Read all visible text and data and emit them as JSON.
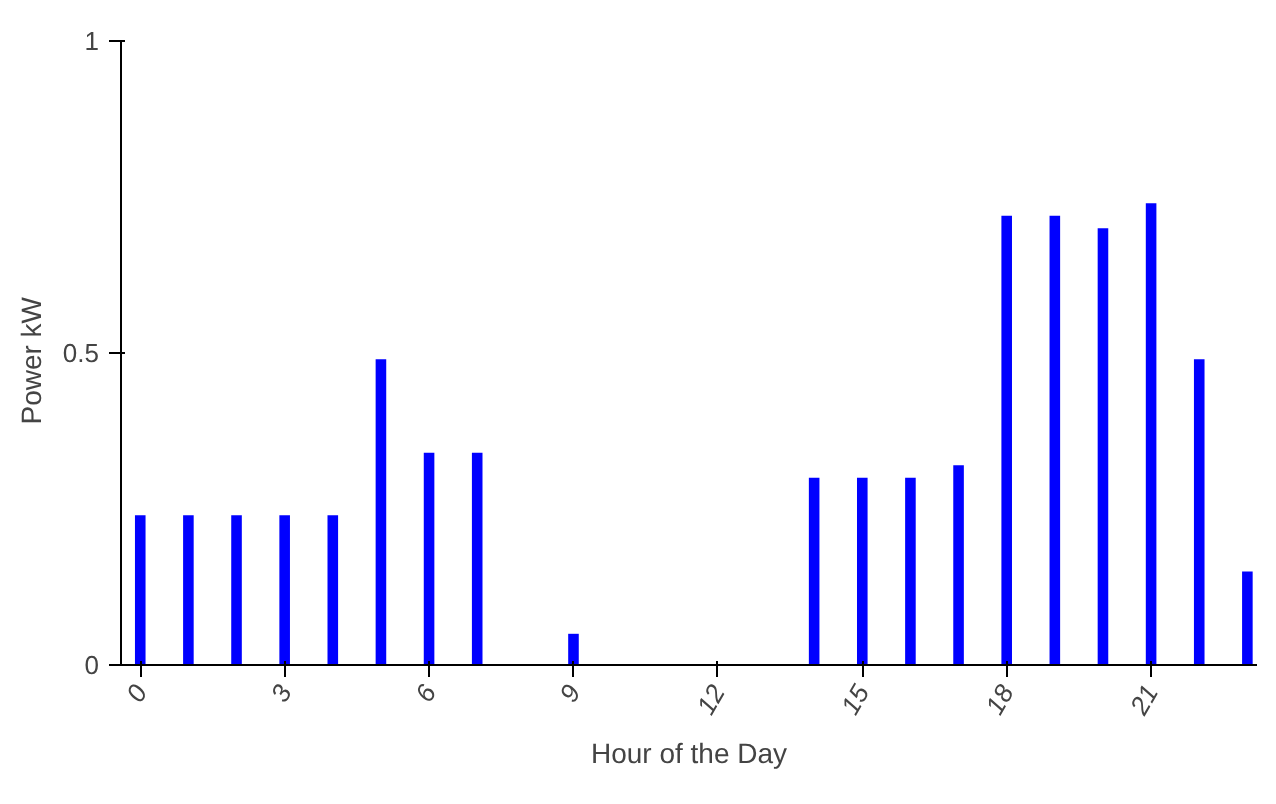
{
  "chart_data": {
    "type": "bar",
    "xlabel": "Hour of the Day",
    "ylabel": "Power   kW",
    "x": [
      0,
      1,
      2,
      3,
      4,
      5,
      6,
      7,
      8,
      9,
      10,
      11,
      12,
      13,
      14,
      15,
      16,
      17,
      18,
      19,
      20,
      21,
      22,
      23
    ],
    "values": [
      0.24,
      0.24,
      0.24,
      0.24,
      0.24,
      0.49,
      0.34,
      0.34,
      0,
      0.05,
      0,
      0,
      0,
      0,
      0.3,
      0.3,
      0.3,
      0.32,
      0.72,
      0.72,
      0.7,
      0.74,
      0.49,
      0.15
    ],
    "color": "#0000ff",
    "xlim": [
      -0.4,
      23.2
    ],
    "xticks": [
      0,
      3,
      6,
      9,
      12,
      15,
      18,
      21
    ],
    "ylim": [
      0,
      1
    ],
    "yticks": [
      0,
      {
        "value": 0.5,
        "label": "0.5"
      },
      1
    ],
    "grid": false
  }
}
